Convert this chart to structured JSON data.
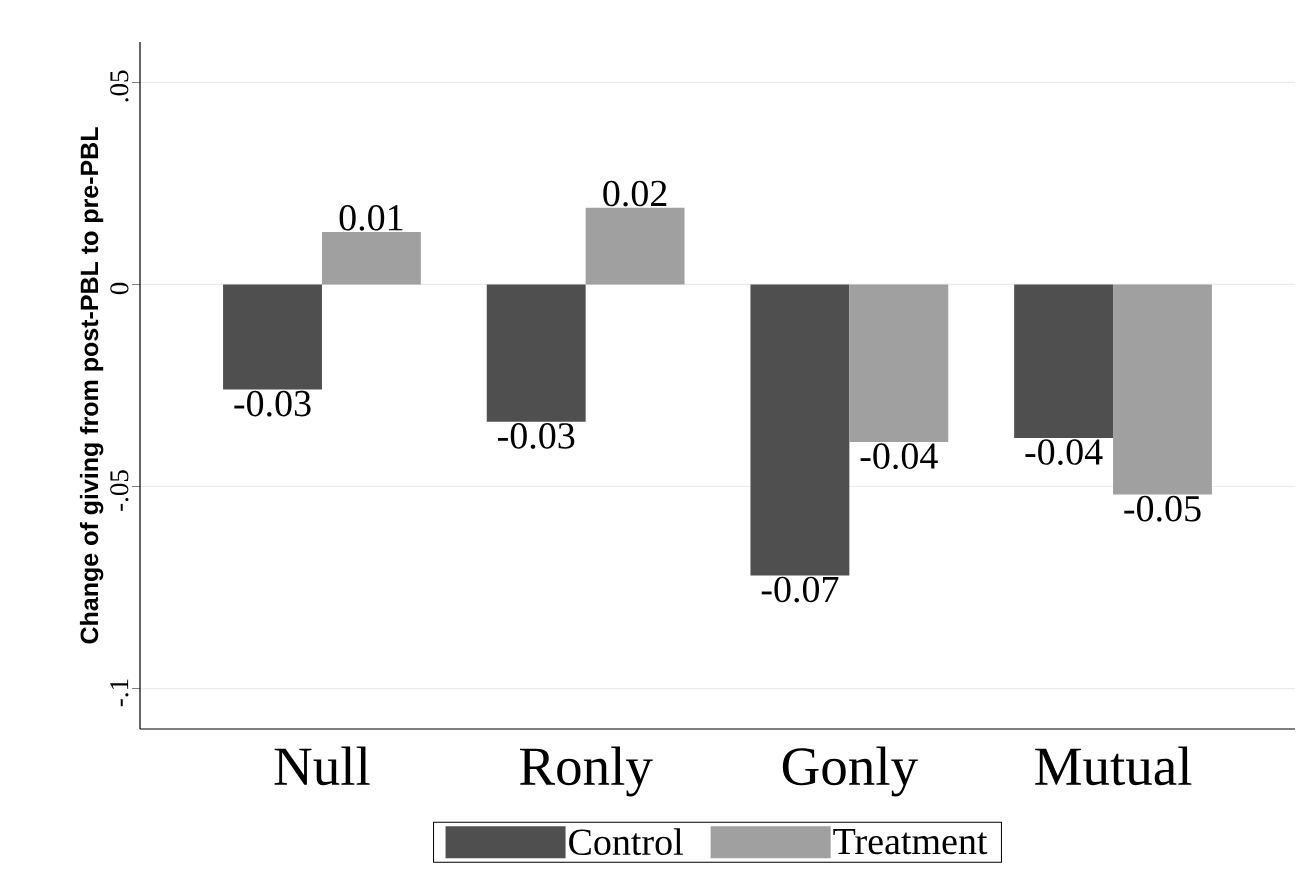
{
  "chart_data": {
    "type": "bar",
    "ylabel": "Change of giving from post-PBL to pre-PBL",
    "categories": [
      "Null",
      "Ronly",
      "Gonly",
      "Mutual"
    ],
    "series": [
      {
        "name": "Control",
        "color": "#4f4f4f",
        "values": [
          -0.026,
          -0.034,
          -0.072,
          -0.038
        ],
        "value_labels": [
          "-0.03",
          "-0.03",
          "-0.07",
          "-0.04"
        ]
      },
      {
        "name": "Treatment",
        "color": "#a0a0a0",
        "values": [
          0.013,
          0.019,
          -0.039,
          -0.052
        ],
        "value_labels": [
          "0.01",
          "0.02",
          "-0.04",
          "-0.05"
        ]
      }
    ],
    "ylim": [
      -0.11,
      0.06
    ],
    "yticks": [
      {
        "value": -0.1,
        "label": "-.1"
      },
      {
        "value": -0.05,
        "label": "-.05"
      },
      0,
      {
        "value": 0.05,
        "label": ".05"
      }
    ],
    "grid": "y",
    "legend": "bottom"
  }
}
